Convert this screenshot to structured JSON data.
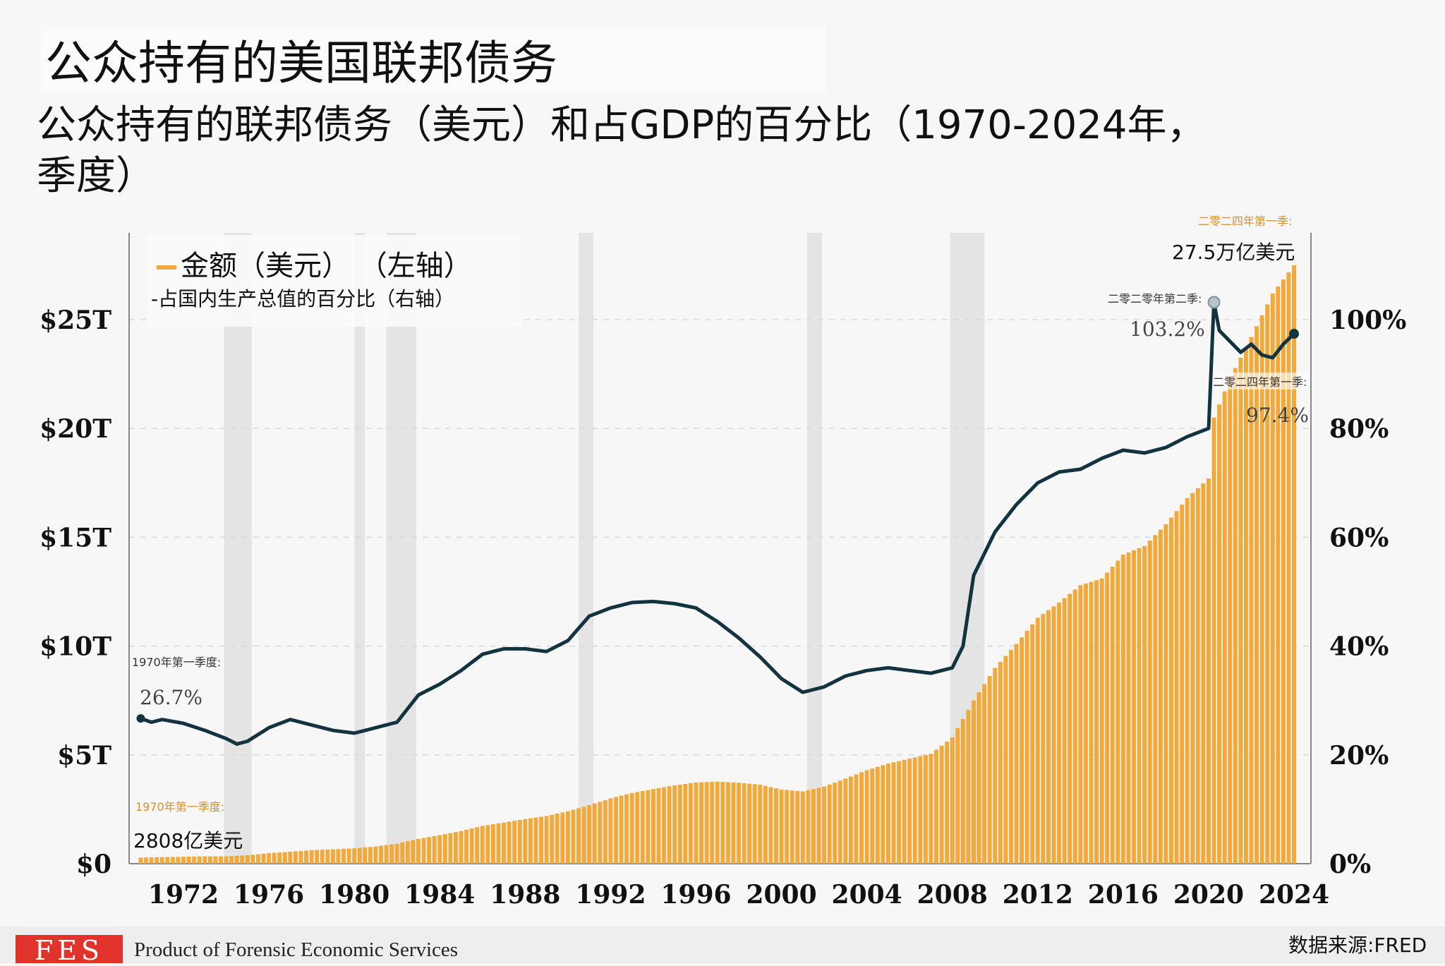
{
  "title": "公众持有的美国联邦债务",
  "subtitle": "公众持有的联邦债务（美元）和占GDP的百分比（1970-2024年，季度）",
  "legend": {
    "debt": "金额（美元）  （左轴）",
    "gdp": "-占国内生产总值的百分比（右轴）"
  },
  "annotations": {
    "start_gdp_label": "1970年第一季度:",
    "start_gdp_value": "26.7%",
    "start_debt_label": "1970年第一季度:",
    "start_debt_value": "2808亿美元",
    "end_debt_label": "二零二四年第一季:",
    "end_debt_value": "27.5万亿美元",
    "peak_label": "二零二零年第二季:",
    "peak_value": "103.2%",
    "end_gdp_label": "二零二四年第一季:",
    "end_gdp_value": "97.4%"
  },
  "footer": {
    "logo": "FES",
    "credit": "Product of Forensic Economic Services",
    "source": "数据来源:FRED"
  },
  "colors": {
    "bars": "#f0a93a",
    "line": "#12333f",
    "recession": "#e4e4e4"
  },
  "chart_data": {
    "type": "bar+line",
    "title": "公众持有的联邦债务（美元）和占GDP的百分比（1970-2024年，季度）",
    "x_ticks": [
      "1972",
      "1976",
      "1980",
      "1984",
      "1988",
      "1992",
      "1996",
      "2000",
      "2004",
      "2008",
      "2012",
      "2016",
      "2020",
      "2024"
    ],
    "y_left_ticks": [
      "$0",
      "$5T",
      "$10T",
      "$15T",
      "$20T",
      "$25T"
    ],
    "y_left_range": [
      0,
      28.5
    ],
    "y_right_ticks": [
      "0%",
      "20%",
      "40%",
      "60%",
      "80%",
      "100%"
    ],
    "y_right_range": [
      0,
      114
    ],
    "legend_position": "top-left",
    "recessions": [
      [
        1973.9,
        1975.2
      ],
      [
        1980.0,
        1980.5
      ],
      [
        1981.5,
        1982.9
      ],
      [
        1990.5,
        1991.2
      ],
      [
        2001.2,
        2001.9
      ],
      [
        2007.9,
        2009.5
      ]
    ],
    "debt_trillions": {
      "years": [
        1970,
        1971,
        1972,
        1973,
        1974,
        1975,
        1976,
        1977,
        1978,
        1979,
        1980,
        1981,
        1982,
        1983,
        1984,
        1985,
        1986,
        1987,
        1988,
        1989,
        1990,
        1991,
        1992,
        1993,
        1994,
        1995,
        1996,
        1997,
        1998,
        1999,
        2000,
        2001,
        2002,
        2003,
        2004,
        2005,
        2006,
        2007,
        2008,
        2009,
        2010,
        2011,
        2012,
        2013,
        2014,
        2015,
        2016,
        2017,
        2018,
        2019,
        2020,
        2020.25,
        2021,
        2022,
        2023,
        2024
      ],
      "values": [
        0.28,
        0.3,
        0.32,
        0.34,
        0.34,
        0.39,
        0.48,
        0.55,
        0.62,
        0.66,
        0.71,
        0.79,
        0.92,
        1.14,
        1.31,
        1.5,
        1.74,
        1.89,
        2.05,
        2.19,
        2.41,
        2.69,
        3.0,
        3.25,
        3.43,
        3.6,
        3.73,
        3.77,
        3.72,
        3.63,
        3.41,
        3.32,
        3.54,
        3.91,
        4.3,
        4.6,
        4.83,
        5.05,
        5.8,
        7.5,
        9.0,
        10.1,
        11.3,
        12.0,
        12.8,
        13.1,
        14.2,
        14.6,
        15.6,
        16.8,
        17.7,
        20.5,
        22.3,
        24.2,
        26.2,
        27.5
      ]
    },
    "pct_gdp": {
      "years": [
        1970,
        1970.5,
        1971,
        1972,
        1973,
        1974,
        1974.5,
        1975,
        1976,
        1977,
        1978,
        1979,
        1980,
        1981,
        1982,
        1983,
        1984,
        1985,
        1986,
        1987,
        1988,
        1989,
        1990,
        1991,
        1992,
        1993,
        1994,
        1995,
        1996,
        1997,
        1998,
        1999,
        2000,
        2001,
        2002,
        2003,
        2004,
        2005,
        2006,
        2007,
        2008,
        2008.5,
        2009,
        2010,
        2011,
        2012,
        2013,
        2014,
        2015,
        2016,
        2017,
        2018,
        2019,
        2020,
        2020.25,
        2020.5,
        2021,
        2021.5,
        2022,
        2022.5,
        2023,
        2023.5,
        2024
      ],
      "values": [
        26.7,
        26.0,
        26.5,
        25.8,
        24.5,
        23.0,
        22.0,
        22.5,
        25.0,
        26.5,
        25.5,
        24.5,
        24.0,
        25.0,
        26.0,
        31.0,
        33.0,
        35.5,
        38.5,
        39.5,
        39.5,
        39.0,
        41.0,
        45.5,
        47.0,
        48.0,
        48.2,
        47.8,
        47.0,
        44.5,
        41.5,
        38.0,
        34.0,
        31.5,
        32.5,
        34.5,
        35.5,
        36.0,
        35.5,
        35.0,
        36.0,
        40.0,
        53.0,
        61.0,
        66.0,
        70.0,
        72.0,
        72.5,
        74.5,
        76.0,
        75.5,
        76.5,
        78.5,
        80.0,
        103.2,
        98.0,
        96.0,
        94.0,
        95.5,
        93.5,
        93.0,
        95.5,
        97.4
      ]
    }
  }
}
